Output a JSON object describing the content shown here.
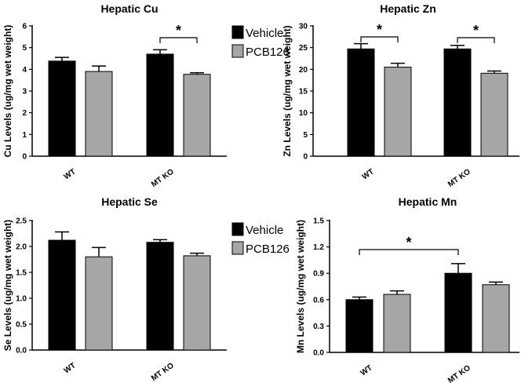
{
  "colors": {
    "vehicle": "#000000",
    "pcb126": "#a6a6a6"
  },
  "legend": [
    {
      "name": "Vehicle",
      "color": "#000000"
    },
    {
      "name": "PCB126",
      "color": "#a6a6a6"
    }
  ],
  "chart_data": [
    {
      "type": "bar",
      "title": "Hepatic Cu",
      "ylabel": "Cu Levels (ug/mg wet weight)",
      "ylim": [
        0,
        6
      ],
      "yticks": [
        "0",
        "1",
        "2",
        "3",
        "4",
        "5",
        "6"
      ],
      "categories": [
        "WT",
        "MT KO"
      ],
      "series": [
        {
          "name": "Vehicle",
          "values": [
            4.38,
            4.7
          ],
          "errors": [
            0.17,
            0.2
          ]
        },
        {
          "name": "PCB126",
          "values": [
            3.9,
            3.77
          ],
          "errors": [
            0.25,
            0.07
          ]
        }
      ],
      "significance": [
        {
          "label": "*",
          "from": [
            1,
            0
          ],
          "to": [
            1,
            1
          ]
        }
      ],
      "legend_placement": "right"
    },
    {
      "type": "bar",
      "title": "Hepatic Zn",
      "ylabel": "Zn Levels (ug/mg wet weight)",
      "ylim": [
        0,
        30
      ],
      "yticks": [
        "0",
        "5",
        "10",
        "15",
        "20",
        "25",
        "30"
      ],
      "categories": [
        "WT",
        "MT KO"
      ],
      "series": [
        {
          "name": "Vehicle",
          "values": [
            24.7,
            24.7
          ],
          "errors": [
            1.2,
            0.8
          ]
        },
        {
          "name": "PCB126",
          "values": [
            20.5,
            19.1
          ],
          "errors": [
            0.9,
            0.5
          ]
        }
      ],
      "significance": [
        {
          "label": "*",
          "from": [
            0,
            0
          ],
          "to": [
            0,
            1
          ]
        },
        {
          "label": "*",
          "from": [
            1,
            0
          ],
          "to": [
            1,
            1
          ]
        }
      ]
    },
    {
      "type": "bar",
      "title": "Hepatic Se",
      "ylabel": "Se Levels (ug/mg wet weight)",
      "ylim": [
        0,
        2.5
      ],
      "yticks": [
        "0.0",
        "0.5",
        "1.0",
        "1.5",
        "2.0",
        "2.5"
      ],
      "categories": [
        "WT",
        "MT KO"
      ],
      "series": [
        {
          "name": "Vehicle",
          "values": [
            2.12,
            2.08
          ],
          "errors": [
            0.16,
            0.05
          ]
        },
        {
          "name": "PCB126",
          "values": [
            1.8,
            1.82
          ],
          "errors": [
            0.18,
            0.05
          ]
        }
      ],
      "significance": [],
      "legend_placement": "right"
    },
    {
      "type": "bar",
      "title": "Hepatic Mn",
      "ylabel": "Mn Levels (ug/mg wet weight)",
      "ylim": [
        0,
        1.5
      ],
      "yticks": [
        "0.0",
        "0.3",
        "0.6",
        "0.9",
        "1.2",
        "1.5"
      ],
      "categories": [
        "WT",
        "MT KO"
      ],
      "series": [
        {
          "name": "Vehicle",
          "values": [
            0.6,
            0.9
          ],
          "errors": [
            0.03,
            0.11
          ]
        },
        {
          "name": "PCB126",
          "values": [
            0.66,
            0.77
          ],
          "errors": [
            0.04,
            0.03
          ]
        }
      ],
      "significance": [
        {
          "label": "*",
          "from": [
            0,
            0
          ],
          "to": [
            1,
            0
          ]
        }
      ]
    }
  ]
}
